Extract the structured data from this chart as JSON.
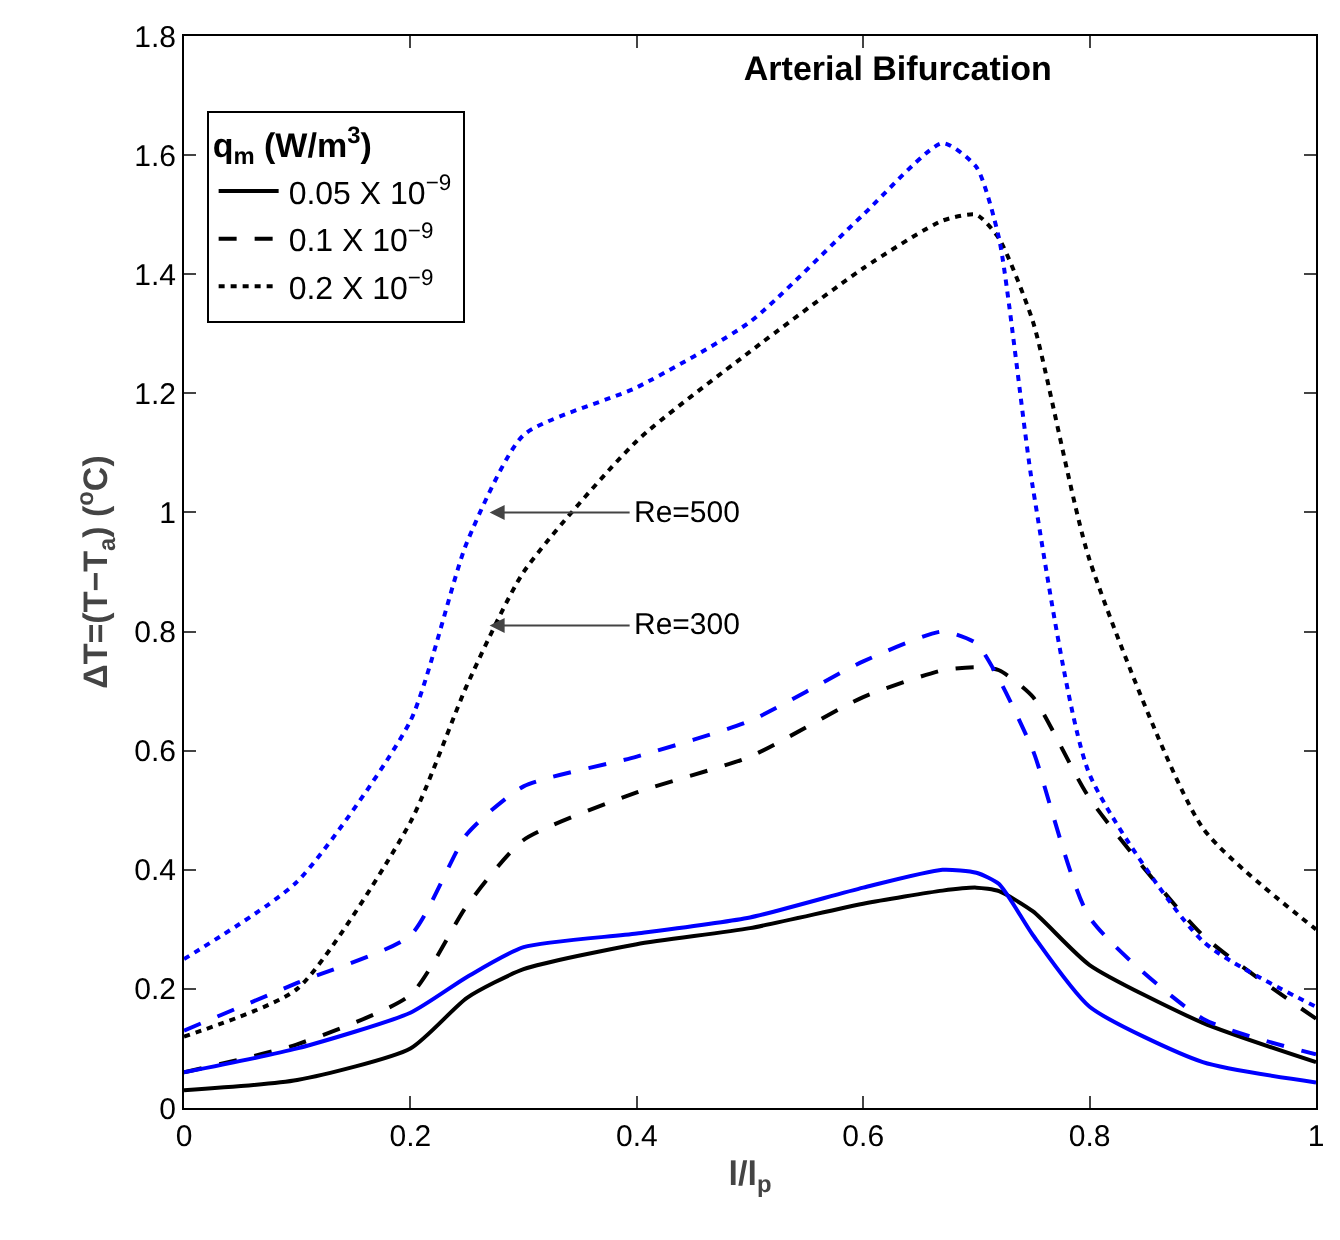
{
  "chart_data": {
    "type": "line",
    "title": "Arterial Bifurcation",
    "xlabel": "l/l$_{p}$",
    "ylabel": "ΔT=(T−T$_{a}$) ($^{o}$C)",
    "legend_title": "q$_{m}$ (W/m$^{3}$)",
    "legend": "top left",
    "grid": false,
    "marker": "none",
    "xlim": [
      0,
      1
    ],
    "xticks": [
      0,
      0.2,
      0.4,
      0.6,
      0.8,
      1
    ],
    "ylim": [
      0,
      1.8
    ],
    "yticks": [
      0,
      0.2,
      0.4,
      0.6,
      0.8,
      1,
      1.2,
      1.4,
      1.6,
      1.8
    ],
    "x": [
      0,
      0.1,
      0.2,
      0.25,
      0.3,
      0.4,
      0.5,
      0.6,
      0.67,
      0.7,
      0.72,
      0.75,
      0.8,
      0.9,
      1
    ],
    "series": [
      {
        "name": "0.05 X 10$^{−9}$",
        "color": "#000000",
        "line_style": "solid",
        "values": [
          0.03,
          0.047,
          0.1,
          0.185,
          0.233,
          0.275,
          0.302,
          0.343,
          0.365,
          0.37,
          0.364,
          0.33,
          0.24,
          0.143,
          0.077
        ]
      },
      {
        "name": "0.1 X 10$^{−9}$",
        "color": "#000000",
        "line_style": "dashed",
        "values": [
          0.06,
          0.107,
          0.19,
          0.34,
          0.45,
          0.53,
          0.59,
          0.69,
          0.735,
          0.74,
          0.735,
          0.69,
          0.52,
          0.29,
          0.15
        ]
      },
      {
        "name": "0.2 X 10$^{−9}$",
        "color": "#000000",
        "line_style": "dotted",
        "values": [
          0.12,
          0.2,
          0.48,
          0.71,
          0.9,
          1.12,
          1.27,
          1.41,
          1.49,
          1.5,
          1.46,
          1.32,
          0.92,
          0.47,
          0.3
        ]
      },
      {
        "color": "#0000ff",
        "line_style": "solid",
        "values": [
          0.06,
          0.1,
          0.16,
          0.22,
          0.27,
          0.293,
          0.32,
          0.37,
          0.4,
          0.395,
          0.376,
          0.29,
          0.17,
          0.077,
          0.043
        ]
      },
      {
        "color": "#0000ff",
        "line_style": "dashed",
        "values": [
          0.13,
          0.21,
          0.29,
          0.46,
          0.54,
          0.59,
          0.65,
          0.75,
          0.8,
          0.78,
          0.72,
          0.6,
          0.32,
          0.15,
          0.09
        ]
      },
      {
        "color": "#0000ff",
        "line_style": "dotted",
        "values": [
          0.25,
          0.38,
          0.65,
          0.95,
          1.13,
          1.21,
          1.32,
          1.5,
          1.62,
          1.58,
          1.46,
          1.04,
          0.56,
          0.28,
          0.17
        ]
      }
    ],
    "annotations": [
      {
        "text": "Re=500",
        "x": 0.27,
        "y": 1.0
      },
      {
        "text": "Re=300",
        "x": 0.27,
        "y": 0.81
      }
    ]
  }
}
